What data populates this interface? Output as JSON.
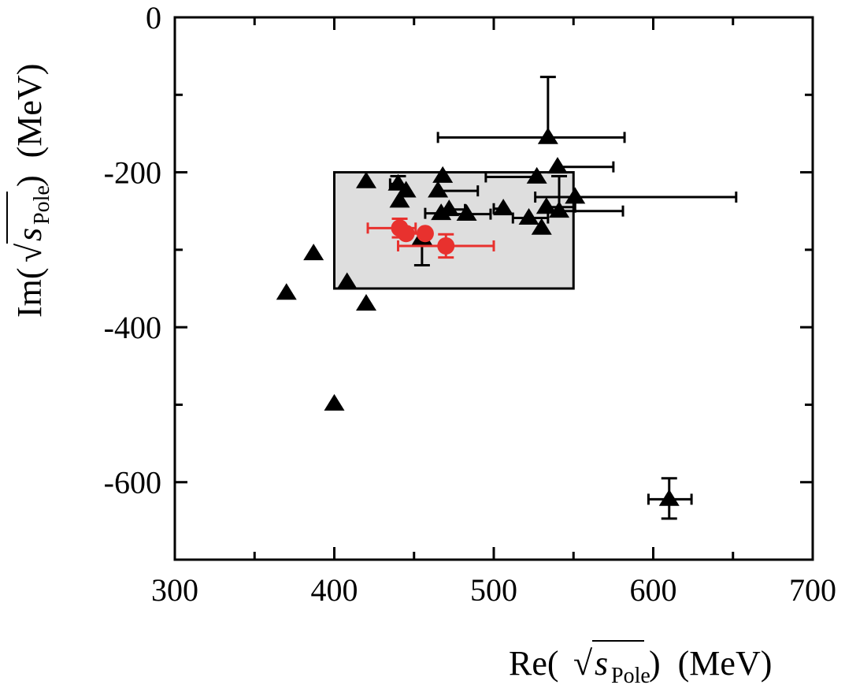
{
  "chart_data": {
    "type": "scatter",
    "title": "",
    "xlabel": "Re(√s_Pole) (MeV)",
    "ylabel": "Im(√s_Pole) (MeV)",
    "xlabel_parts": {
      "prefix": "Re(",
      "sqrt": "√",
      "s": "s",
      "sub": "Pole",
      "suffix": ")  (MeV)"
    },
    "ylabel_parts": {
      "prefix": "Im(",
      "sqrt": "√",
      "s": "s",
      "sub": "Pole",
      "suffix": ")  (MeV)"
    },
    "xlim": [
      300,
      700
    ],
    "ylim": [
      -700,
      0
    ],
    "xticks": [
      300,
      400,
      500,
      600,
      700
    ],
    "xtick_labels": [
      "300",
      "400",
      "500",
      "600",
      "700"
    ],
    "yticks": [
      0,
      -200,
      -400,
      -600
    ],
    "ytick_labels": [
      "0",
      "-200",
      "-400",
      "-600"
    ],
    "x_minor_ticks": [
      350,
      450,
      550,
      650
    ],
    "y_minor_ticks": [
      -100,
      -300,
      -500,
      -700
    ],
    "grid": false,
    "legend": "none",
    "band": {
      "x": [
        400,
        550
      ],
      "y": [
        -350,
        -200
      ],
      "color": "#dedede"
    },
    "series": [
      {
        "marker": "triangle",
        "color": "#000000",
        "points": [
          {
            "x": 534,
            "y": -155,
            "xerr": [
              69,
              48
            ],
            "yerr": [
              78,
              0
            ]
          },
          {
            "x": 540,
            "y": -193,
            "xerr": [
              0,
              35
            ],
            "yerr": [
              0,
              0
            ]
          },
          {
            "x": 527,
            "y": -206,
            "xerr": [
              32,
              0
            ],
            "yerr": [
              0,
              0
            ]
          },
          {
            "x": 551,
            "y": -232,
            "xerr": [
              25,
              101
            ],
            "yerr": [
              0,
              0
            ]
          },
          {
            "x": 468,
            "y": -205,
            "xerr": [
              0,
              0
            ],
            "yerr": [
              0,
              0
            ]
          },
          {
            "x": 420,
            "y": -212,
            "xerr": [
              0,
              0
            ],
            "yerr": [
              0,
              0
            ]
          },
          {
            "x": 440,
            "y": -215,
            "xerr": [
              5,
              0
            ],
            "yerr": [
              10,
              0
            ]
          },
          {
            "x": 441,
            "y": -237,
            "xerr": [
              0,
              0
            ],
            "yerr": [
              0,
              0
            ]
          },
          {
            "x": 445,
            "y": -224,
            "xerr": [
              0,
              0
            ],
            "yerr": [
              0,
              0
            ]
          },
          {
            "x": 465,
            "y": -224,
            "xerr": [
              0,
              25
            ],
            "yerr": [
              0,
              0
            ]
          },
          {
            "x": 467,
            "y": -253,
            "xerr": [
              10,
              0
            ],
            "yerr": [
              0,
              0
            ]
          },
          {
            "x": 472,
            "y": -248,
            "xerr": [
              0,
              10
            ],
            "yerr": [
              0,
              0
            ]
          },
          {
            "x": 483,
            "y": -254,
            "xerr": [
              12,
              15
            ],
            "yerr": [
              0,
              0
            ]
          },
          {
            "x": 506,
            "y": -247,
            "xerr": [
              6,
              0
            ],
            "yerr": [
              0,
              0
            ]
          },
          {
            "x": 522,
            "y": -259,
            "xerr": [
              10,
              12
            ],
            "yerr": [
              0,
              0
            ]
          },
          {
            "x": 533,
            "y": -245,
            "xerr": [
              0,
              18
            ],
            "yerr": [
              0,
              0
            ]
          },
          {
            "x": 530,
            "y": -272,
            "xerr": [
              0,
              0
            ],
            "yerr": [
              0,
              0
            ]
          },
          {
            "x": 541,
            "y": -250,
            "xerr": [
              0,
              40
            ],
            "yerr": [
              45,
              0
            ]
          },
          {
            "x": 455,
            "y": -285,
            "xerr": [
              0,
              0
            ],
            "yerr": [
              0,
              35
            ]
          },
          {
            "x": 387,
            "y": -305,
            "xerr": [
              0,
              0
            ],
            "yerr": [
              0,
              0
            ]
          },
          {
            "x": 370,
            "y": -356,
            "xerr": [
              0,
              0
            ],
            "yerr": [
              0,
              0
            ]
          },
          {
            "x": 408,
            "y": -342,
            "xerr": [
              0,
              0
            ],
            "yerr": [
              0,
              0
            ]
          },
          {
            "x": 420,
            "y": -370,
            "xerr": [
              0,
              0
            ],
            "yerr": [
              0,
              0
            ]
          },
          {
            "x": 400,
            "y": -499,
            "xerr": [
              0,
              0
            ],
            "yerr": [
              0,
              0
            ]
          },
          {
            "x": 610,
            "y": -622,
            "xerr": [
              13,
              14
            ],
            "yerr": [
              27,
              25
            ]
          }
        ]
      },
      {
        "marker": "circle",
        "color": "#e8312e",
        "points": [
          {
            "x": 441,
            "y": -272,
            "xerr": [
              20,
              10
            ],
            "yerr": [
              12,
              12
            ]
          },
          {
            "x": 445,
            "y": -279,
            "xerr": [
              0,
              0
            ],
            "yerr": [
              0,
              0
            ]
          },
          {
            "x": 457,
            "y": -279,
            "xerr": [
              12,
              0
            ],
            "yerr": [
              0,
              0
            ]
          },
          {
            "x": 470,
            "y": -295,
            "xerr": [
              30,
              30
            ],
            "yerr": [
              15,
              15
            ]
          }
        ]
      }
    ]
  }
}
